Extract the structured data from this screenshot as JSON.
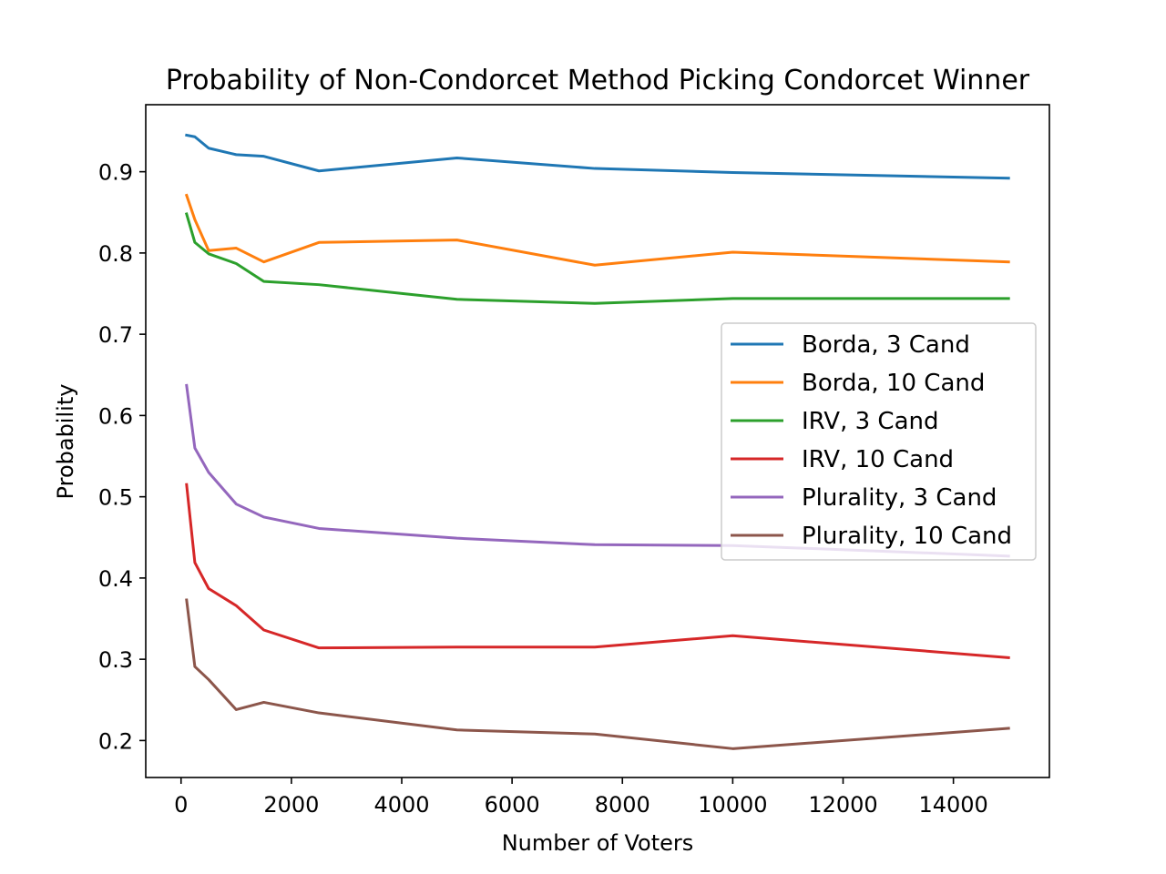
{
  "chart_data": {
    "type": "line",
    "title": "Probability of Non-Condorcet Method Picking Condorcet Winner",
    "xlabel": "Number of Voters",
    "ylabel": "Probability",
    "xlim": [
      -640,
      15740
    ],
    "ylim": [
      0.1545,
      0.9825
    ],
    "xticks": [
      0,
      2000,
      4000,
      6000,
      8000,
      10000,
      12000,
      14000
    ],
    "yticks": [
      0.2,
      0.3,
      0.4,
      0.5,
      0.6,
      0.7,
      0.8,
      0.9
    ],
    "xtick_labels": [
      "0",
      "2000",
      "4000",
      "6000",
      "8000",
      "10000",
      "12000",
      "14000"
    ],
    "ytick_labels": [
      "0.2",
      "0.3",
      "0.4",
      "0.5",
      "0.6",
      "0.7",
      "0.8",
      "0.9"
    ],
    "grid": false,
    "legend_position": "center-right",
    "x": [
      100,
      250,
      500,
      1000,
      1500,
      2500,
      5000,
      7500,
      10000,
      15000
    ],
    "series": [
      {
        "name": "Borda, 3 Cand",
        "color": "#1f77b4",
        "values": [
          0.945,
          0.943,
          0.929,
          0.921,
          0.919,
          0.901,
          0.917,
          0.904,
          0.899,
          0.892
        ]
      },
      {
        "name": "Borda, 10 Cand",
        "color": "#ff7f0e",
        "values": [
          0.871,
          0.841,
          0.803,
          0.806,
          0.789,
          0.813,
          0.816,
          0.785,
          0.801,
          0.789
        ]
      },
      {
        "name": "IRV, 3 Cand",
        "color": "#2ca02c",
        "values": [
          0.848,
          0.813,
          0.799,
          0.787,
          0.765,
          0.761,
          0.743,
          0.738,
          0.744,
          0.744
        ]
      },
      {
        "name": "IRV, 10 Cand",
        "color": "#d62728",
        "values": [
          0.515,
          0.419,
          0.387,
          0.366,
          0.336,
          0.314,
          0.315,
          0.315,
          0.329,
          0.302
        ]
      },
      {
        "name": "Plurality, 3 Cand",
        "color": "#9467bd",
        "values": [
          0.637,
          0.56,
          0.53,
          0.491,
          0.475,
          0.461,
          0.449,
          0.441,
          0.44,
          0.427
        ]
      },
      {
        "name": "Plurality, 10 Cand",
        "color": "#8c564b",
        "values": [
          0.373,
          0.291,
          0.275,
          0.238,
          0.247,
          0.234,
          0.213,
          0.208,
          0.19,
          0.215
        ]
      }
    ]
  }
}
